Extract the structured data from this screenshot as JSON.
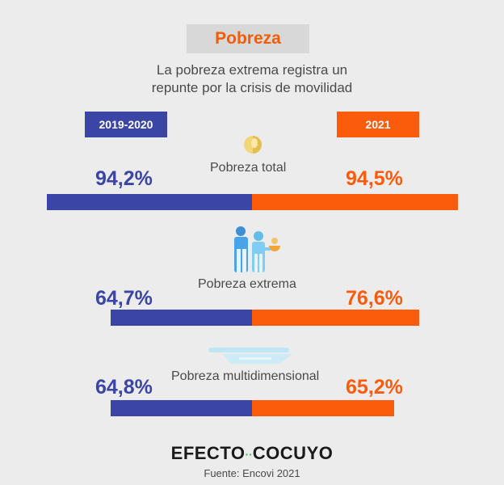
{
  "header": {
    "title": "Pobreza",
    "subtitle_lines": [
      "La pobreza extrema registra un",
      "repunte por la crisis de movilidad"
    ]
  },
  "chart_data": {
    "type": "bar",
    "categories": [
      "Pobreza total",
      "Pobreza extrema",
      "Pobreza multidimensional"
    ],
    "series": [
      {
        "name": "2019-2020",
        "values": [
          94.2,
          64.7,
          64.8
        ],
        "labels": [
          "94,2%",
          "64,7%",
          "64,8%"
        ],
        "color": "#3b45a3"
      },
      {
        "name": "2021",
        "values": [
          94.5,
          76.6,
          65.2
        ],
        "labels": [
          "94,5%",
          "76,6%",
          "65,2%"
        ],
        "color": "#fa5c0b"
      }
    ],
    "unit": "%",
    "xlim": [
      0,
      100
    ]
  },
  "icons": [
    "coin-icon",
    "family-icon",
    "plate-icon"
  ],
  "footer": {
    "logo_left": "EFECTO",
    "logo_dots": "··",
    "logo_right": "COCUYO",
    "source": "Fuente: Encovi 2021"
  }
}
